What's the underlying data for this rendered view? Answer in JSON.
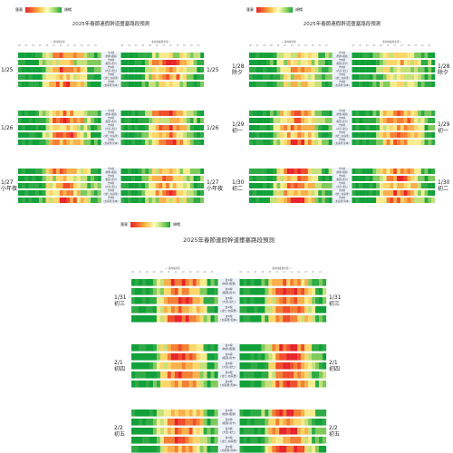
{
  "legend": {
    "congested": "壅塞",
    "smooth": "順暢"
  },
  "panels": [
    {
      "title": "2025年春節連假幹道壅塞路段預測",
      "days": [
        {
          "date": "1/25",
          "note": "",
          "seed": 3,
          "bias": [
            0.55,
            0.3,
            0.7,
            0.4
          ]
        },
        {
          "date": "1/26",
          "note": "",
          "seed": 11,
          "bias": [
            0.5,
            0.65,
            0.35,
            0.6
          ]
        },
        {
          "date": "1/27",
          "note": "小年夜",
          "seed": 19,
          "bias": [
            0.6,
            0.35,
            0.55,
            0.45
          ]
        }
      ]
    },
    {
      "title": "2025年春節連假幹道壅塞路段預測",
      "days": [
        {
          "date": "1/28",
          "note": "除夕",
          "seed": 27,
          "bias": [
            0.35,
            0.3,
            0.4,
            0.3
          ]
        },
        {
          "date": "1/29",
          "note": "初一",
          "seed": 35,
          "bias": [
            0.6,
            0.5,
            0.55,
            0.45
          ]
        },
        {
          "date": "1/30",
          "note": "初二",
          "seed": 43,
          "bias": [
            0.65,
            0.55,
            0.6,
            0.5
          ]
        }
      ]
    },
    {
      "title": "2025年春節連假幹道壅塞路段預測",
      "days": [
        {
          "date": "1/31",
          "note": "初三",
          "seed": 51,
          "bias": [
            0.7,
            0.5,
            0.65,
            0.55
          ]
        },
        {
          "date": "2/1",
          "note": "初四",
          "seed": 59,
          "bias": [
            0.55,
            0.7,
            0.6,
            0.65
          ]
        },
        {
          "date": "2/2",
          "note": "初五",
          "seed": 67,
          "bias": [
            0.5,
            0.7,
            0.55,
            0.7
          ]
        }
      ]
    }
  ],
  "directions": {
    "south": "← 南向往屏東",
    "north": "東向往臺灣北部 →"
  },
  "hours": [
    "00",
    "01",
    "02",
    "03",
    "04",
    "05",
    "06",
    "07",
    "08",
    "09",
    "10",
    "11",
    "12",
    "13",
    "14",
    "15",
    "16",
    "17",
    "18",
    "19",
    "20",
    "21",
    "22",
    "23"
  ],
  "routes": [
    {
      "name": "台1線",
      "segment": "(枋寮-楓港)"
    },
    {
      "name": "台9線",
      "segment": "(楓港-壽卡)"
    },
    {
      "name": "台9線",
      "segment": "(大武-達仁)"
    },
    {
      "name": "台9線",
      "segment": "(達仁-太麻里)"
    },
    {
      "name": "台9線",
      "segment": "(太麻里-知本)"
    }
  ]
}
